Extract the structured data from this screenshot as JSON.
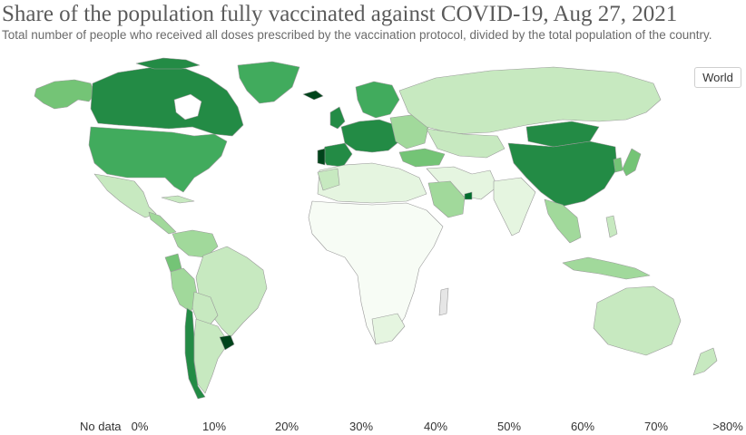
{
  "header": {
    "title": "Share of the population fully vaccinated against COVID-19, Aug 27, 2021",
    "subtitle": "Total number of people who received all doses prescribed by the vaccination protocol, divided by the total population of the country."
  },
  "controls": {
    "region_label": "World"
  },
  "legend": {
    "no_data_label": "No data",
    "bins": [
      "0%",
      "10%",
      "20%",
      "30%",
      "40%",
      "50%",
      "60%",
      "70%",
      ">80%"
    ],
    "colors": [
      "#f7fcf5",
      "#e5f5e0",
      "#c7e9c0",
      "#a1d99b",
      "#74c476",
      "#41ab5d",
      "#238b45",
      "#006d2c",
      "#00441b"
    ],
    "no_data_color": "#e6e6e6"
  },
  "colors": {
    "ocean": "#ffffff",
    "border": "#9a9a9a"
  }
}
